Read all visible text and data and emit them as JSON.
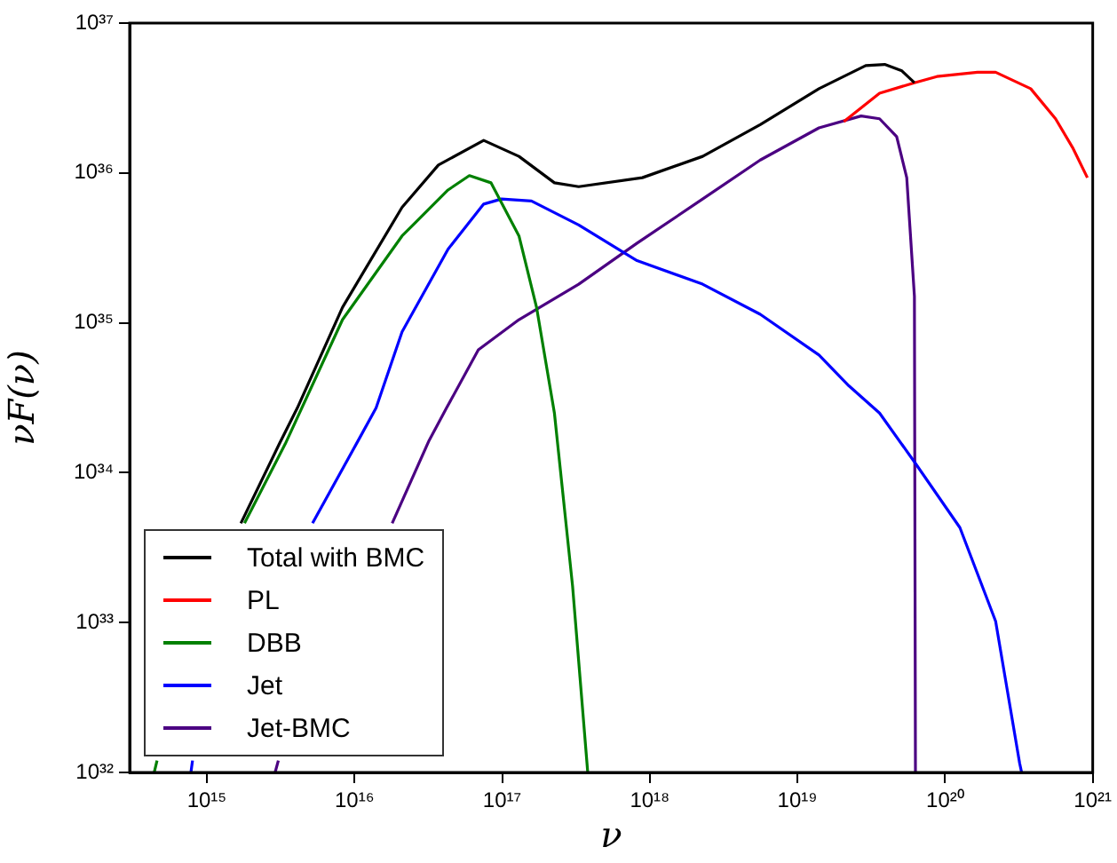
{
  "chart_data": {
    "type": "line",
    "xlabel": "ν",
    "ylabel": "νF(ν)",
    "log": "xy",
    "grid": false,
    "legend": "bottom left",
    "marker": "none",
    "line_style": "solid",
    "xlim": [
      300000000000000.0,
      1e+21
    ],
    "ylim": [
      1e+32,
      1e+37
    ],
    "xticks": [
      {
        "value": 1000000000000000.0,
        "label": "10¹⁵"
      },
      {
        "value": 1e+16,
        "label": "10¹⁶"
      },
      {
        "value": 1e+17,
        "label": "10¹⁷"
      },
      {
        "value": 1e+18,
        "label": "10¹⁸"
      },
      {
        "value": 1e+19,
        "label": "10¹⁹"
      },
      {
        "value": 1e+20,
        "label": "10²⁰"
      },
      {
        "value": 1e+21,
        "label": "10²¹"
      }
    ],
    "yticks": [
      {
        "value": 1e+32,
        "label": "10³²"
      },
      {
        "value": 1e+33,
        "label": "10³³"
      },
      {
        "value": 1e+34,
        "label": "10³⁴"
      },
      {
        "value": 1e+35,
        "label": "10³⁵"
      },
      {
        "value": 1e+36,
        "label": "10³⁶"
      },
      {
        "value": 1e+37,
        "label": "10³⁷"
      }
    ],
    "series": [
      {
        "name": "Total with BMC",
        "color": "#000000",
        "x": [
          1700000000000000.0,
          3100000000000000.0,
          4100000000000000.0,
          8300000000000000.0,
          2.1e+16,
          3.7e+16,
          7.5e+16,
          1.3e+17,
          2.26e+17,
          3.3e+17,
          8.9e+17,
          2.28e+18,
          5.6e+18,
          1.4e+19,
          2.9e+19,
          3.9e+19,
          5.1e+19,
          6.2e+19
        ],
        "values": [
          4.6e+33,
          1.56e+34,
          2.7e+34,
          1.27e+35,
          5.9e+35,
          1.13e+36,
          1.65e+36,
          1.29e+36,
          8.6e+35,
          8.1e+35,
          9.3e+35,
          1.29e+36,
          2.1e+36,
          3.65e+36,
          5.2e+36,
          5.3e+36,
          4.8e+36,
          4e+36
        ]
      },
      {
        "name": "PL",
        "color": "#ff0000",
        "x": [
          2.06e+19,
          3.6e+19,
          6.2e+19,
          8.8e+19,
          1.66e+20,
          2.2e+20,
          3.8e+20,
          5.6e+20,
          7.3e+20,
          9.2e+20
        ],
        "values": [
          2.2e+36,
          3.4e+36,
          4e+36,
          4.4e+36,
          4.7e+36,
          4.7e+36,
          3.65e+36,
          2.3e+36,
          1.48e+36,
          9.3e+35
        ]
      },
      {
        "name": "DBB",
        "color": "#008000",
        "x": [
          440000000000000.0,
          460000000000000.0,
          1000000000000000.0,
          1800000000000000.0,
          3400000000000000.0,
          8300000000000000.0,
          2.1e+16,
          4.3e+16,
          6e+16,
          8.4e+16,
          1.3e+17,
          1.71e+17,
          2.26e+17,
          3e+17,
          3.8e+17
        ],
        "values": [
          1e+32,
          1.2e+32,
          null,
          4.6e+33,
          1.56e+34,
          1.05e+35,
          3.8e+35,
          7.7e+35,
          9.6e+35,
          8.6e+35,
          3.8e+35,
          1.27e+35,
          2.5e+34,
          1.75e+33,
          1e+32
        ]
      },
      {
        "name": "Jet",
        "color": "#0000ff",
        "x": [
          780000000000000.0,
          800000000000000.0,
          2000000000000000.0,
          5200000000000000.0,
          1.06e+16,
          1.4e+16,
          2.1e+16,
          4.3e+16,
          7.5e+16,
          9.9e+16,
          1.58e+17,
          3.3e+17,
          8.2e+17,
          2.28e+18,
          5.6e+18,
          1.4e+19,
          2.23e+19,
          3.6e+19,
          6.2e+19,
          1.26e+20,
          2.2e+20,
          3.2e+20,
          3.3e+20
        ],
        "values": [
          1e+32,
          1.2e+32,
          null,
          4.6e+33,
          1.64e+34,
          2.7e+34,
          8.7e+34,
          3.1e+35,
          6.2e+35,
          6.7e+35,
          6.5e+35,
          4.5e+35,
          2.6e+35,
          1.81e+35,
          1.14e+35,
          6.1e+34,
          3.8e+34,
          2.5e+34,
          1.18e+34,
          4.3e+33,
          1.02e+33,
          1.15e+32,
          1e+32
        ]
      },
      {
        "name": "Jet-BMC",
        "color": "#4b0082",
        "x": [
          2900000000000000.0,
          3050000000000000.0,
          8000000000000000.0,
          1.8e+16,
          3.2e+16,
          4.2e+16,
          6.9e+16,
          1.3e+17,
          3.3e+17,
          8.2e+17,
          2.28e+18,
          5.6e+18,
          1.4e+19,
          2.7e+19,
          3.6e+19,
          4.7e+19,
          5.5e+19,
          6.2e+19,
          6.3e+19
        ],
        "values": [
          1e+32,
          1.2e+32,
          null,
          4.6e+33,
          1.64e+34,
          2.7e+34,
          6.6e+34,
          1.05e+35,
          1.81e+35,
          3.4e+35,
          6.7e+35,
          1.22e+36,
          2e+36,
          2.4e+36,
          2.3e+36,
          1.75e+36,
          9.3e+35,
          1.5e+35,
          1e+32
        ]
      }
    ]
  }
}
